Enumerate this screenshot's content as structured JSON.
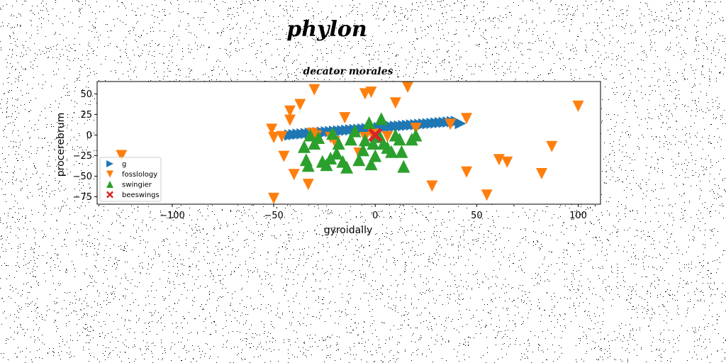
{
  "page_title": "phylon",
  "chart_data": {
    "type": "scatter",
    "title": "decator morales",
    "xlabel": "gyroidally",
    "ylabel": "procerebrum",
    "xlim": [
      -137,
      111
    ],
    "ylim": [
      -84,
      65
    ],
    "xticks": [
      -100,
      -50,
      0,
      50,
      100
    ],
    "xtick_labels": [
      "−100",
      "−50",
      "0",
      "50",
      "100"
    ],
    "yticks": [
      50,
      25,
      0,
      -25,
      -50,
      -75
    ],
    "ytick_labels": [
      "50",
      "25",
      "0",
      "−25",
      "−50",
      "−75"
    ],
    "grid": false,
    "legend_position": "lower-left",
    "series": [
      {
        "name": "g",
        "marker": "triangle-right",
        "color": "#1f77b4",
        "x": [
          -42,
          -40,
          -38,
          -36,
          -34,
          -32,
          -30,
          -28,
          -26,
          -24,
          -22,
          -20,
          -18,
          -16,
          -14,
          -12,
          -10,
          -8,
          -6,
          -4,
          -2,
          0,
          2,
          4,
          6,
          8,
          10,
          12,
          14,
          16,
          18,
          20,
          22,
          24,
          26,
          28,
          30,
          32,
          34,
          36,
          38,
          40,
          42
        ],
        "y": [
          0,
          0.5,
          1,
          1.4,
          1.8,
          2.2,
          2.6,
          3,
          3.4,
          3.8,
          4.2,
          4.6,
          5,
          5.4,
          5.8,
          6.2,
          6.6,
          7,
          7.4,
          7.8,
          8.2,
          8.6,
          9,
          9.4,
          9.8,
          10.2,
          10.6,
          11,
          11.4,
          11.8,
          12.2,
          12.6,
          13,
          13.4,
          13.8,
          14.2,
          14.6,
          15,
          15.4,
          15.8,
          16.2,
          16.6,
          14
        ]
      },
      {
        "name": "fosslology",
        "marker": "triangle-down",
        "color": "#ff7f0e",
        "x": [
          -125,
          -51,
          -50,
          -50,
          -46,
          -45,
          -42,
          -42,
          -40,
          -37,
          -33,
          -31,
          -30,
          -29,
          -22,
          -20,
          -15,
          -8,
          -5,
          -5,
          -2,
          -1,
          -1,
          6,
          10,
          16,
          20,
          28,
          37,
          45,
          45,
          55,
          61,
          65,
          82,
          87,
          100
        ],
        "y": [
          -25,
          7,
          -3,
          -77,
          -2,
          -26,
          29,
          18,
          -48,
          37,
          -60,
          2,
          55,
          -1,
          -3,
          -8,
          21,
          -22,
          50,
          -3,
          52,
          -2,
          1,
          -2,
          39,
          58,
          8,
          -62,
          13,
          -45,
          20,
          -73,
          -30,
          -33,
          -47,
          -14,
          35
        ]
      },
      {
        "name": "swingier",
        "marker": "triangle-up",
        "color": "#2ca02c",
        "x": [
          -35,
          -34,
          -33,
          -32,
          -30,
          -28,
          -26,
          -24,
          -22,
          -21,
          -19,
          -18,
          -16,
          -14,
          -12,
          -10,
          -8,
          -6,
          -5,
          -3,
          -2,
          -1,
          0,
          1,
          2,
          3,
          4,
          6,
          8,
          10,
          12,
          13,
          14,
          18,
          20
        ],
        "y": [
          -14,
          -30,
          -37,
          0,
          -10,
          -3,
          -32,
          -36,
          -28,
          2,
          -22,
          -10,
          -32,
          -39,
          -5,
          5,
          -30,
          -18,
          -6,
          15,
          -35,
          -10,
          -25,
          -2,
          0,
          20,
          -10,
          -15,
          -20,
          0,
          -5,
          -20,
          -38,
          -5,
          0
        ]
      },
      {
        "name": "beeswings",
        "marker": "x-filled",
        "color": "#d62728",
        "x": [
          0
        ],
        "y": [
          0
        ]
      }
    ]
  }
}
